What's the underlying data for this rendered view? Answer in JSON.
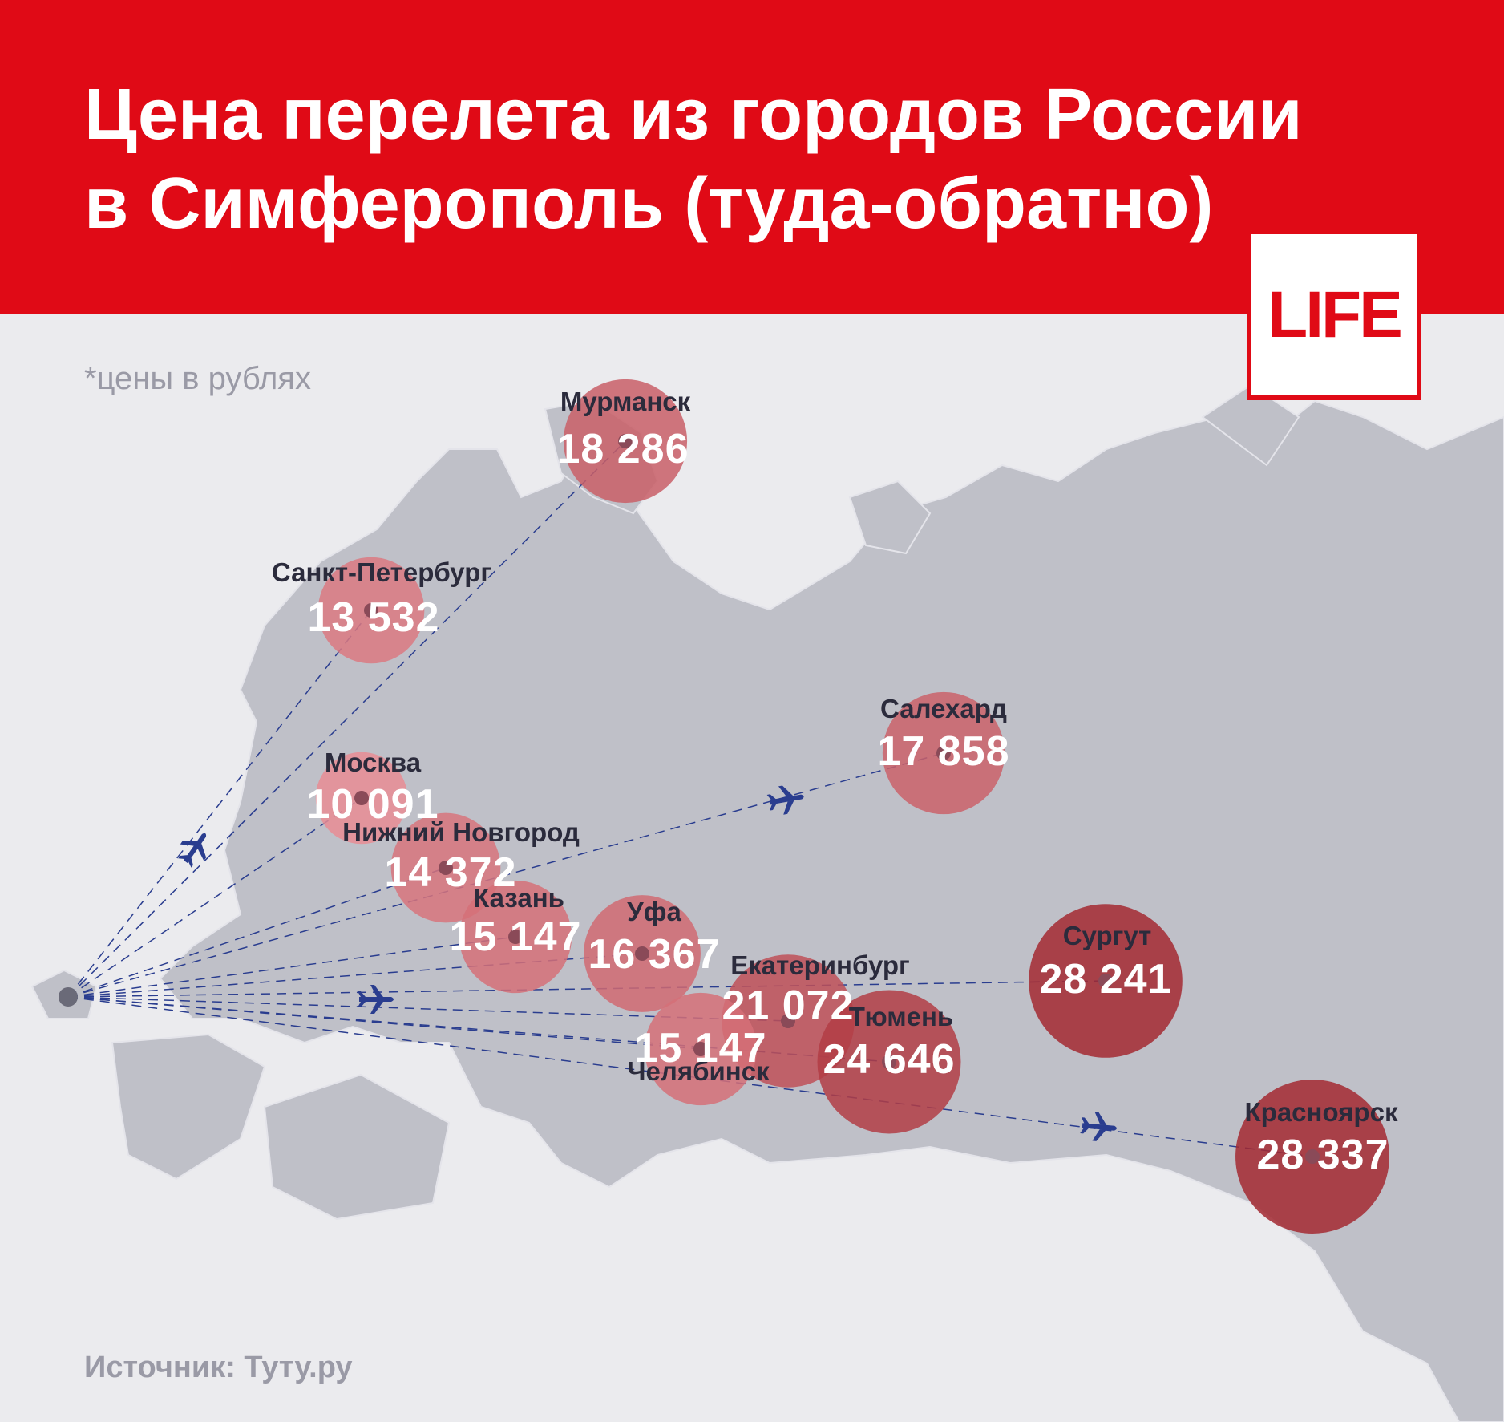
{
  "header": {
    "title_line1": "Цена перелета из городов России",
    "title_line2": "в Симферополь (туда-обратно)"
  },
  "logo": "LIFE",
  "note": "*цены в рублях",
  "source": "Источник: Туту.ру",
  "cities": [
    {
      "name": "Мурманск",
      "price": 18286,
      "price_label": "18 286"
    },
    {
      "name": "Санкт-Петербург",
      "price": 13532,
      "price_label": "13 532"
    },
    {
      "name": "Москва",
      "price": 10091,
      "price_label": "10 091"
    },
    {
      "name": "Нижний Новгород",
      "price": 14372,
      "price_label": "14 372"
    },
    {
      "name": "Казань",
      "price": 15147,
      "price_label": "15 147"
    },
    {
      "name": "Уфа",
      "price": 16367,
      "price_label": "16 367"
    },
    {
      "name": "Екатеринбург",
      "price": 21072,
      "price_label": "21 072"
    },
    {
      "name": "Челябинск",
      "price": 15147,
      "price_label": "15 147"
    },
    {
      "name": "Тюмень",
      "price": 24646,
      "price_label": "24 646"
    },
    {
      "name": "Сургут",
      "price": 28241,
      "price_label": "28 241"
    },
    {
      "name": "Салехард",
      "price": 17858,
      "price_label": "17 858"
    },
    {
      "name": "Красноярск",
      "price": 28337,
      "price_label": "28 337"
    }
  ]
}
